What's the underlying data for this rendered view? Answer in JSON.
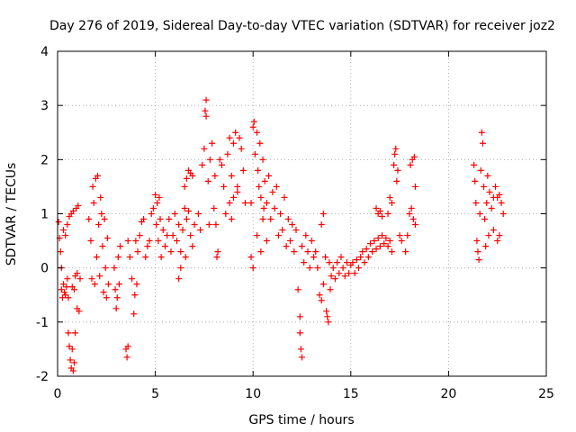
{
  "chart_data": {
    "type": "scatter",
    "title": "Day 276 of 2019, Sidereal Day-to-day VTEC variation (SDTVAR) for receiver joz2",
    "xlabel": "GPS time / hours",
    "ylabel": "SDTVAR / TECUs",
    "xlim": [
      0,
      25
    ],
    "ylim": [
      -2,
      4
    ],
    "xticks": [
      0,
      5,
      10,
      15,
      20,
      25
    ],
    "yticks": [
      -2,
      -1,
      0,
      1,
      2,
      3,
      4
    ],
    "xtick_labels": [
      "0",
      "5",
      "10",
      "15",
      "20",
      "25"
    ],
    "ytick_labels": [
      "-2",
      "-1",
      "0",
      "1",
      "2",
      "3",
      "4"
    ],
    "grid": true,
    "marker": "+",
    "series": [
      {
        "name": "SDTVAR",
        "color": "#ff0000",
        "points": [
          [
            0.05,
            0.85
          ],
          [
            0.1,
            0.55
          ],
          [
            0.15,
            0.3
          ],
          [
            0.2,
            0.0
          ],
          [
            0.2,
            -0.4
          ],
          [
            0.25,
            -0.55
          ],
          [
            0.3,
            -0.3
          ],
          [
            0.3,
            0.7
          ],
          [
            0.35,
            -0.45
          ],
          [
            0.4,
            -0.5
          ],
          [
            0.4,
            0.6
          ],
          [
            0.45,
            -0.35
          ],
          [
            0.5,
            -0.2
          ],
          [
            0.5,
            0.8
          ],
          [
            0.55,
            -1.2
          ],
          [
            0.55,
            -0.55
          ],
          [
            0.6,
            -1.45
          ],
          [
            0.6,
            0.95
          ],
          [
            0.65,
            -1.7
          ],
          [
            0.7,
            -1.85
          ],
          [
            0.7,
            1.0
          ],
          [
            0.75,
            -1.5
          ],
          [
            0.75,
            -0.35
          ],
          [
            0.8,
            -1.9
          ],
          [
            0.8,
            1.05
          ],
          [
            0.85,
            -1.75
          ],
          [
            0.85,
            -0.4
          ],
          [
            0.9,
            -1.2
          ],
          [
            0.9,
            -0.15
          ],
          [
            0.95,
            1.1
          ],
          [
            1.0,
            -0.75
          ],
          [
            1.0,
            -0.1
          ],
          [
            1.05,
            1.15
          ],
          [
            1.1,
            -0.8
          ],
          [
            1.15,
            -0.2
          ],
          [
            1.6,
            0.9
          ],
          [
            1.7,
            0.5
          ],
          [
            1.75,
            -0.2
          ],
          [
            1.8,
            1.5
          ],
          [
            1.85,
            1.2
          ],
          [
            1.9,
            -0.3
          ],
          [
            1.95,
            1.65
          ],
          [
            2.0,
            0.2
          ],
          [
            2.05,
            1.7
          ],
          [
            2.1,
            0.8
          ],
          [
            2.15,
            -0.15
          ],
          [
            2.2,
            1.3
          ],
          [
            2.25,
            1.0
          ],
          [
            2.3,
            0.4
          ],
          [
            2.35,
            -0.45
          ],
          [
            2.4,
            0.9
          ],
          [
            2.45,
            0.0
          ],
          [
            2.5,
            -0.55
          ],
          [
            2.55,
            0.55
          ],
          [
            2.6,
            -0.3
          ],
          [
            2.9,
            0.0
          ],
          [
            2.95,
            -0.4
          ],
          [
            3.0,
            -0.75
          ],
          [
            3.05,
            -0.55
          ],
          [
            3.1,
            0.2
          ],
          [
            3.15,
            -0.3
          ],
          [
            3.2,
            0.4
          ],
          [
            3.5,
            -1.5
          ],
          [
            3.55,
            -1.65
          ],
          [
            3.6,
            -1.45
          ],
          [
            3.6,
            0.5
          ],
          [
            3.7,
            0.2
          ],
          [
            3.8,
            -0.2
          ],
          [
            3.9,
            -0.85
          ],
          [
            3.95,
            -0.5
          ],
          [
            4.0,
            0.5
          ],
          [
            4.05,
            -0.3
          ],
          [
            4.1,
            0.3
          ],
          [
            4.2,
            0.6
          ],
          [
            4.3,
            0.85
          ],
          [
            4.4,
            0.9
          ],
          [
            4.5,
            0.2
          ],
          [
            4.6,
            0.4
          ],
          [
            4.7,
            0.5
          ],
          [
            4.8,
            1.0
          ],
          [
            4.9,
            1.1
          ],
          [
            5.0,
            1.35
          ],
          [
            5.05,
            0.8
          ],
          [
            5.1,
            1.2
          ],
          [
            5.15,
            0.5
          ],
          [
            5.2,
            1.3
          ],
          [
            5.25,
            0.9
          ],
          [
            5.3,
            0.2
          ],
          [
            5.4,
            0.7
          ],
          [
            5.5,
            0.4
          ],
          [
            5.6,
            0.6
          ],
          [
            5.7,
            0.9
          ],
          [
            5.8,
            0.3
          ],
          [
            5.9,
            0.6
          ],
          [
            6.0,
            1.0
          ],
          [
            6.1,
            0.5
          ],
          [
            6.2,
            0.8
          ],
          [
            6.3,
            0.3
          ],
          [
            6.4,
            0.7
          ],
          [
            6.5,
            1.1
          ],
          [
            6.55,
            0.2
          ],
          [
            6.6,
            0.9
          ],
          [
            6.7,
            1.05
          ],
          [
            6.8,
            0.6
          ],
          [
            6.9,
            0.4
          ],
          [
            7.0,
            0.8
          ],
          [
            6.5,
            1.5
          ],
          [
            6.6,
            1.65
          ],
          [
            6.7,
            1.8
          ],
          [
            6.8,
            1.75
          ],
          [
            6.9,
            1.7
          ],
          [
            6.2,
            -0.2
          ],
          [
            6.3,
            0.0
          ],
          [
            7.2,
            1.0
          ],
          [
            7.3,
            0.7
          ],
          [
            7.4,
            1.9
          ],
          [
            7.5,
            2.2
          ],
          [
            7.55,
            2.9
          ],
          [
            7.6,
            3.1
          ],
          [
            7.6,
            2.8
          ],
          [
            7.7,
            1.6
          ],
          [
            7.75,
            0.8
          ],
          [
            7.8,
            2.0
          ],
          [
            7.9,
            2.3
          ],
          [
            8.0,
            1.1
          ],
          [
            8.05,
            1.7
          ],
          [
            8.1,
            0.8
          ],
          [
            8.15,
            0.2
          ],
          [
            8.2,
            0.3
          ],
          [
            8.3,
            2.0
          ],
          [
            8.4,
            1.9
          ],
          [
            8.5,
            1.5
          ],
          [
            8.6,
            1.0
          ],
          [
            8.7,
            2.1
          ],
          [
            8.8,
            2.4
          ],
          [
            8.9,
            1.7
          ],
          [
            9.0,
            2.3
          ],
          [
            9.1,
            2.5
          ],
          [
            9.2,
            1.4
          ],
          [
            9.3,
            2.4
          ],
          [
            9.4,
            2.2
          ],
          [
            9.5,
            1.8
          ],
          [
            9.6,
            1.2
          ],
          [
            9.0,
            1.3
          ],
          [
            9.2,
            1.5
          ],
          [
            8.9,
            0.9
          ],
          [
            8.8,
            1.2
          ],
          [
            9.9,
            1.2
          ],
          [
            10.0,
            2.6
          ],
          [
            10.05,
            2.7
          ],
          [
            10.1,
            2.1
          ],
          [
            10.2,
            2.5
          ],
          [
            10.25,
            1.8
          ],
          [
            10.3,
            1.5
          ],
          [
            10.35,
            2.3
          ],
          [
            10.4,
            1.3
          ],
          [
            10.5,
            2.0
          ],
          [
            10.55,
            1.1
          ],
          [
            10.6,
            1.6
          ],
          [
            10.7,
            1.2
          ],
          [
            10.8,
            1.7
          ],
          [
            10.9,
            0.9
          ],
          [
            11.0,
            1.4
          ],
          [
            11.1,
            1.1
          ],
          [
            11.2,
            1.5
          ],
          [
            11.3,
            0.6
          ],
          [
            11.4,
            1.0
          ],
          [
            11.5,
            0.7
          ],
          [
            11.6,
            1.3
          ],
          [
            11.7,
            0.4
          ],
          [
            11.8,
            0.9
          ],
          [
            11.9,
            0.5
          ],
          [
            12.0,
            0.8
          ],
          [
            12.1,
            0.3
          ],
          [
            12.2,
            0.7
          ],
          [
            12.3,
            -0.4
          ],
          [
            12.4,
            -0.9
          ],
          [
            12.4,
            -1.2
          ],
          [
            12.45,
            -1.5
          ],
          [
            12.5,
            -1.65
          ],
          [
            12.5,
            0.4
          ],
          [
            12.6,
            0.1
          ],
          [
            12.7,
            0.6
          ],
          [
            12.8,
            0.3
          ],
          [
            12.9,
            0.0
          ],
          [
            13.0,
            0.5
          ],
          [
            13.1,
            0.2
          ],
          [
            13.2,
            0.3
          ],
          [
            10.2,
            0.6
          ],
          [
            10.4,
            0.3
          ],
          [
            10.5,
            0.9
          ],
          [
            10.7,
            0.5
          ],
          [
            9.9,
            0.2
          ],
          [
            10.0,
            0.0
          ],
          [
            13.3,
            0.0
          ],
          [
            13.4,
            -0.5
          ],
          [
            13.5,
            -0.6
          ],
          [
            13.5,
            0.8
          ],
          [
            13.6,
            -0.3
          ],
          [
            13.6,
            1.0
          ],
          [
            13.7,
            0.2
          ],
          [
            13.75,
            -0.8
          ],
          [
            13.8,
            -0.9
          ],
          [
            13.85,
            -1.0
          ],
          [
            13.9,
            0.1
          ],
          [
            13.95,
            -0.4
          ],
          [
            14.0,
            -0.15
          ],
          [
            14.1,
            0.0
          ],
          [
            14.2,
            -0.2
          ],
          [
            14.3,
            0.1
          ],
          [
            14.4,
            -0.1
          ],
          [
            14.5,
            0.2
          ],
          [
            14.6,
            0.0
          ],
          [
            14.7,
            -0.15
          ],
          [
            14.8,
            0.1
          ],
          [
            14.9,
            -0.1
          ],
          [
            15.0,
            0.05
          ],
          [
            15.1,
            0.1
          ],
          [
            15.2,
            -0.1
          ],
          [
            15.3,
            0.15
          ],
          [
            15.4,
            0.0
          ],
          [
            15.5,
            0.2
          ],
          [
            15.6,
            0.3
          ],
          [
            15.7,
            0.1
          ],
          [
            15.8,
            0.35
          ],
          [
            15.9,
            0.2
          ],
          [
            16.0,
            0.45
          ],
          [
            16.1,
            0.3
          ],
          [
            16.2,
            0.5
          ],
          [
            16.3,
            0.35
          ],
          [
            16.4,
            0.55
          ],
          [
            16.5,
            0.4
          ],
          [
            16.6,
            0.6
          ],
          [
            16.7,
            0.45
          ],
          [
            16.8,
            0.55
          ],
          [
            16.9,
            0.4
          ],
          [
            17.0,
            0.5
          ],
          [
            17.1,
            0.3
          ],
          [
            16.3,
            1.1
          ],
          [
            16.4,
            1.0
          ],
          [
            16.5,
            1.05
          ],
          [
            16.6,
            0.95
          ],
          [
            16.9,
            1.0
          ],
          [
            17.0,
            1.3
          ],
          [
            17.1,
            1.2
          ],
          [
            17.2,
            1.9
          ],
          [
            17.25,
            2.1
          ],
          [
            17.3,
            2.2
          ],
          [
            17.35,
            1.6
          ],
          [
            17.4,
            1.8
          ],
          [
            17.5,
            0.6
          ],
          [
            17.6,
            0.5
          ],
          [
            17.8,
            0.3
          ],
          [
            17.9,
            0.6
          ],
          [
            18.0,
            1.0
          ],
          [
            18.05,
            1.9
          ],
          [
            18.1,
            1.1
          ],
          [
            18.15,
            2.0
          ],
          [
            18.2,
            0.9
          ],
          [
            18.25,
            2.05
          ],
          [
            18.3,
            1.5
          ],
          [
            18.3,
            0.8
          ],
          [
            21.3,
            1.9
          ],
          [
            21.35,
            1.6
          ],
          [
            21.4,
            1.2
          ],
          [
            21.45,
            0.5
          ],
          [
            21.5,
            0.3
          ],
          [
            21.55,
            0.15
          ],
          [
            21.6,
            1.0
          ],
          [
            21.65,
            1.8
          ],
          [
            21.7,
            2.5
          ],
          [
            21.75,
            2.3
          ],
          [
            21.8,
            1.5
          ],
          [
            21.85,
            0.9
          ],
          [
            21.9,
            0.4
          ],
          [
            21.95,
            1.2
          ],
          [
            22.0,
            1.7
          ],
          [
            22.05,
            0.6
          ],
          [
            22.1,
            1.4
          ],
          [
            22.2,
            1.1
          ],
          [
            22.3,
            0.7
          ],
          [
            22.4,
            1.5
          ],
          [
            22.5,
            1.3
          ],
          [
            22.6,
            0.6
          ],
          [
            22.7,
            1.2
          ],
          [
            22.8,
            1.0
          ],
          [
            22.5,
            0.5
          ],
          [
            22.3,
            1.3
          ],
          [
            22.6,
            1.35
          ]
        ]
      }
    ]
  }
}
